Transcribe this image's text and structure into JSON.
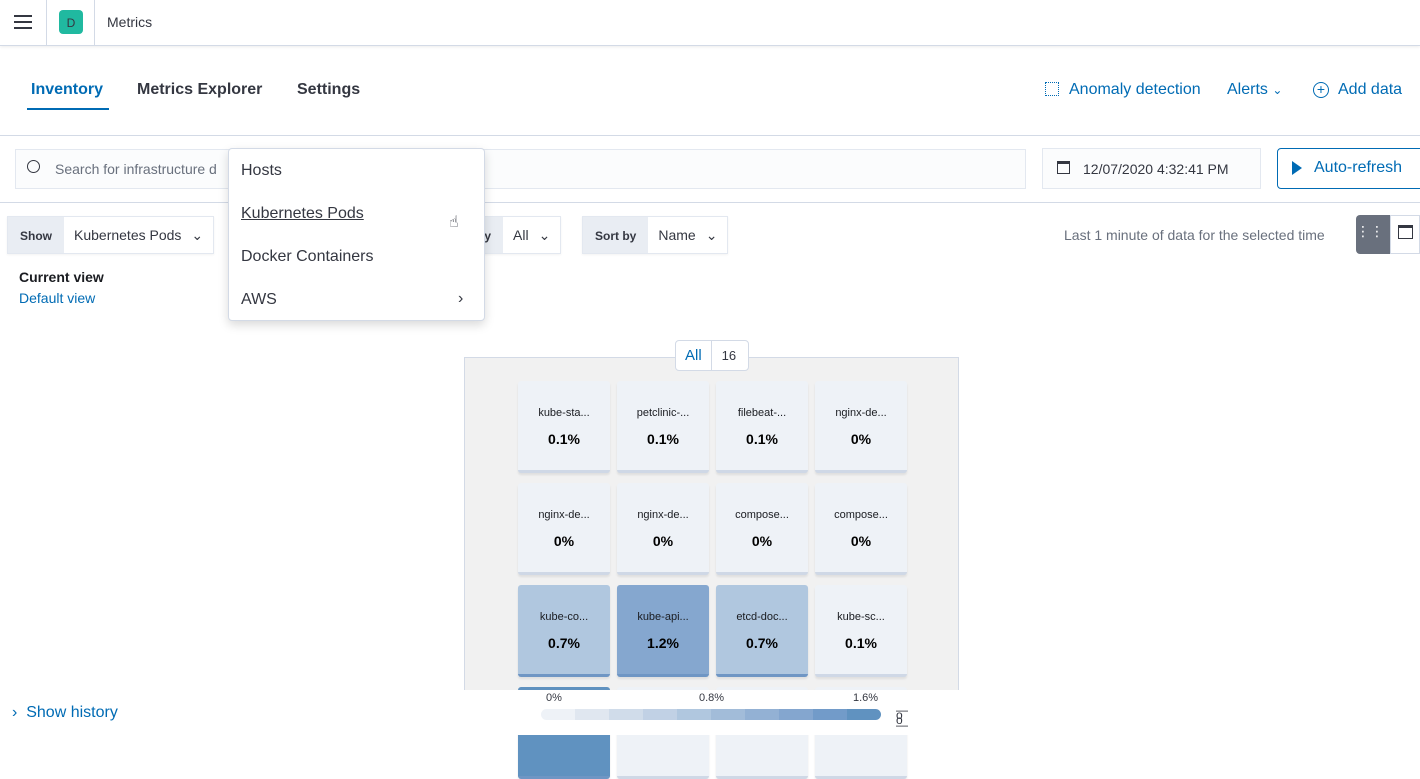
{
  "header": {
    "app_initial": "D",
    "app_title": "Metrics",
    "avatar_color": "#20b9a0"
  },
  "nav": {
    "tabs": [
      {
        "label": "Inventory",
        "active": true
      },
      {
        "label": "Metrics Explorer"
      },
      {
        "label": "Settings"
      }
    ],
    "anomaly": "Anomaly detection",
    "alerts": "Alerts",
    "add_data": "Add data"
  },
  "search": {
    "placeholder": "Search for infrastructure d"
  },
  "date": {
    "value": "12/07/2020 4:32:41 PM"
  },
  "auto_refresh": "Auto-refresh",
  "show": {
    "label": "Show",
    "value": "Kubernetes Pods"
  },
  "group": {
    "label_partial": "by",
    "value": "All"
  },
  "sort": {
    "label": "Sort by",
    "value": "Name"
  },
  "menu": {
    "items": [
      "Hosts",
      "Kubernetes Pods",
      "Docker Containers",
      "AWS"
    ]
  },
  "time_note": "Last 1 minute of data for the selected time",
  "current_view": {
    "label": "Current view",
    "value": "Default view"
  },
  "group_badge": {
    "label": "All",
    "count": "16"
  },
  "tiles": [
    {
      "name": "kube-sta...",
      "value": "0.1%",
      "color": "#eef2f7"
    },
    {
      "name": "petclinic-...",
      "value": "0.1%",
      "color": "#eef2f7"
    },
    {
      "name": "filebeat-...",
      "value": "0.1%",
      "color": "#eef2f7"
    },
    {
      "name": "nginx-de...",
      "value": "0%",
      "color": "#eef2f7"
    },
    {
      "name": "nginx-de...",
      "value": "0%",
      "color": "#eef2f7"
    },
    {
      "name": "nginx-de...",
      "value": "0%",
      "color": "#eef2f7"
    },
    {
      "name": "compose...",
      "value": "0%",
      "color": "#eef2f7"
    },
    {
      "name": "compose...",
      "value": "0%",
      "color": "#eef2f7"
    },
    {
      "name": "kube-co...",
      "value": "0.7%",
      "color": "#b0c7df"
    },
    {
      "name": "kube-api...",
      "value": "1.2%",
      "color": "#85a7cf"
    },
    {
      "name": "etcd-doc...",
      "value": "0.7%",
      "color": "#b0c7df"
    },
    {
      "name": "kube-sc...",
      "value": "0.1%",
      "color": "#eef2f7"
    },
    {
      "color": "#6092c0"
    },
    {
      "color": "#eef2f7"
    },
    {
      "color": "#eef2f7"
    },
    {
      "color": "#eef2f7"
    }
  ],
  "legend": {
    "labels": [
      "0%",
      "0.8%",
      "1.6%"
    ],
    "colors": [
      "#eef2f7",
      "#e0e7f0",
      "#d0dcea",
      "#c1d1e5",
      "#b0c7df",
      "#a2bcd9",
      "#93b1d4",
      "#84a6cf",
      "#729bc9",
      "#6092c0"
    ]
  },
  "show_history": "Show history"
}
